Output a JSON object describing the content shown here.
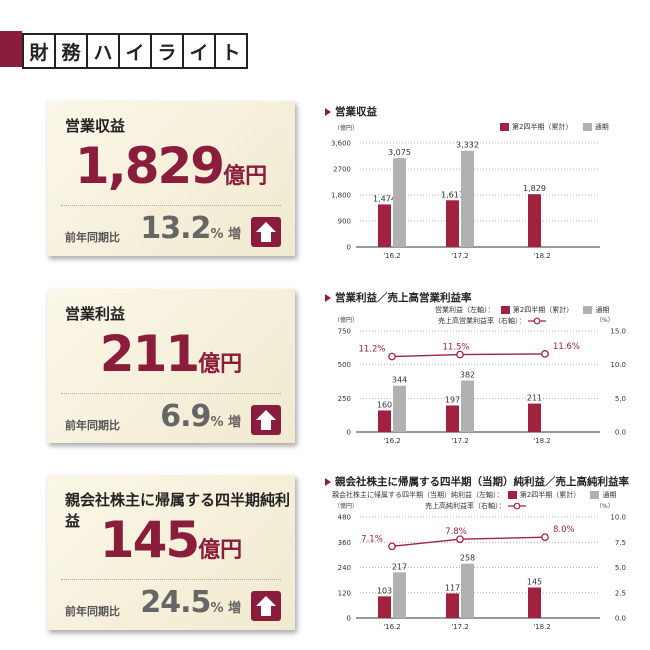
{
  "header": {
    "chars": [
      "財",
      "務",
      "ハ",
      "イ",
      "ラ",
      "イ",
      "ト"
    ]
  },
  "cards": [
    {
      "title": "営業収益",
      "value": "1,829",
      "unit": "億円",
      "yoy_label": "前年同期比",
      "yoy_value": "13.2",
      "yoy_suffix": "% 増"
    },
    {
      "title": "営業利益",
      "value": "211",
      "unit": "億円",
      "yoy_label": "前年同期比",
      "yoy_value": "6.9",
      "yoy_suffix": "% 増"
    },
    {
      "title": "親会社株主に帰属する四半期純利益",
      "value": "145",
      "unit": "億円",
      "yoy_label": "前年同期比",
      "yoy_value": "24.5",
      "yoy_suffix": "% 増"
    }
  ],
  "colors": {
    "accent": "#8a1d3b",
    "q2_bar": "#a0223f",
    "full_bar": "#b1b1b1",
    "line": "#a0223f"
  },
  "icons": {
    "arrow": "arrow-up-icon"
  },
  "chart_data": [
    {
      "type": "bar",
      "title": "営業収益",
      "unit_label": "（億円）",
      "legend": [
        "第2四半期（累計）",
        "通期"
      ],
      "categories": [
        "'16.2",
        "'17.2",
        "'18.2"
      ],
      "series": [
        {
          "name": "第2四半期（累計）",
          "values": [
            1474,
            1617,
            1829
          ],
          "labels": [
            "1,474",
            "1,617",
            "1,829"
          ]
        },
        {
          "name": "通期",
          "values": [
            3075,
            3332,
            null
          ],
          "labels": [
            "3,075",
            "3,332",
            ""
          ]
        }
      ],
      "ylim": [
        0,
        3600
      ],
      "yticks": [
        "0",
        "900",
        "1,800",
        "2700",
        "3,600"
      ],
      "ytick_values": [
        0,
        900,
        1800,
        2700,
        3600
      ]
    },
    {
      "type": "bar",
      "title": "営業利益／売上高営業利益率",
      "unit_label": "（億円）",
      "unit_label_right": "（%）",
      "legend": [
        "営業利益（左軸）：",
        "第2四半期（累計）",
        "通期",
        "売上高営業利益率（右軸）："
      ],
      "categories": [
        "'16.2",
        "'17.2",
        "'18.2"
      ],
      "series": [
        {
          "name": "第2四半期（累計）",
          "values": [
            160,
            197,
            211
          ],
          "labels": [
            "160",
            "197",
            "211"
          ]
        },
        {
          "name": "通期",
          "values": [
            344,
            382,
            null
          ],
          "labels": [
            "344",
            "382",
            ""
          ]
        }
      ],
      "line": {
        "values": [
          11.2,
          11.5,
          11.6
        ],
        "labels": [
          "11.2%",
          "11.5%",
          "11.6%"
        ]
      },
      "ylim": [
        0,
        750
      ],
      "yticks": [
        "0",
        "250",
        "500",
        "750"
      ],
      "ytick_values": [
        0,
        250,
        500,
        750
      ],
      "y2lim": [
        0,
        15
      ],
      "y2ticks": [
        "0.0",
        "5.0",
        "10.0",
        "15.0"
      ],
      "y2tick_values": [
        0,
        5,
        10,
        15
      ]
    },
    {
      "type": "bar",
      "title": "親会社株主に帰属する四半期（当期）純利益／売上高純利益率",
      "unit_label": "（億円）",
      "unit_label_right": "（%）",
      "legend": [
        "親会社株主に帰属する四半期（当期）純利益（左軸）：",
        "第2四半期（累計）",
        "通期",
        "売上高純利益率（右軸）："
      ],
      "categories": [
        "'16.2",
        "'17.2",
        "'18.2"
      ],
      "series": [
        {
          "name": "第2四半期（累計）",
          "values": [
            103,
            117,
            145
          ],
          "labels": [
            "103",
            "117",
            "145"
          ]
        },
        {
          "name": "通期",
          "values": [
            217,
            258,
            null
          ],
          "labels": [
            "217",
            "258",
            ""
          ]
        }
      ],
      "line": {
        "values": [
          7.1,
          7.8,
          8.0
        ],
        "labels": [
          "7.1%",
          "7.8%",
          "8.0%"
        ]
      },
      "ylim": [
        0,
        480
      ],
      "yticks": [
        "0",
        "120",
        "240",
        "360",
        "480"
      ],
      "ytick_values": [
        0,
        120,
        240,
        360,
        480
      ],
      "y2lim": [
        0,
        10
      ],
      "y2ticks": [
        "0.0",
        "2.5",
        "5.0",
        "7.5",
        "10.0"
      ],
      "y2tick_values": [
        0,
        2.5,
        5,
        7.5,
        10
      ]
    }
  ]
}
